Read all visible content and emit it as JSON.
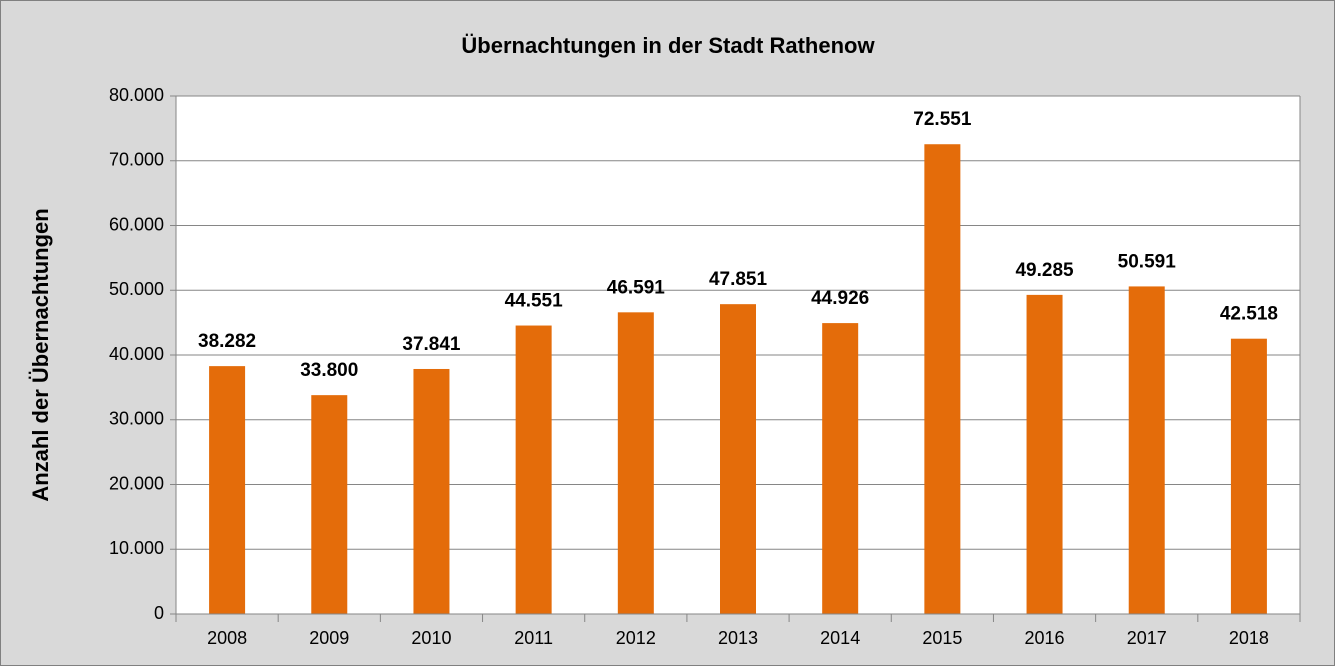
{
  "chart_data": {
    "type": "bar",
    "title": "Übernachtungen in der Stadt Rathenow",
    "y_label": "Anzahl der Übernachtungen",
    "categories": [
      "2008",
      "2009",
      "2010",
      "2011",
      "2012",
      "2013",
      "2014",
      "2015",
      "2016",
      "2017",
      "2018"
    ],
    "values": [
      38282,
      33800,
      37841,
      44551,
      46591,
      47851,
      44926,
      72551,
      49285,
      50591,
      42518
    ],
    "value_labels": [
      "38.282",
      "33.800",
      "37.841",
      "44.551",
      "46.591",
      "47.851",
      "44.926",
      "72.551",
      "49.285",
      "50.591",
      "42.518"
    ],
    "color": "#e46c0a",
    "ylim": [
      0,
      80000
    ],
    "yticks": [
      0,
      {
        "value": 10000,
        "label": "10.000"
      },
      {
        "value": 20000,
        "label": "20.000"
      },
      {
        "value": 30000,
        "label": "30.000"
      },
      {
        "value": 40000,
        "label": "40.000"
      },
      {
        "value": 50000,
        "label": "50.000"
      },
      {
        "value": 60000,
        "label": "60.000"
      },
      {
        "value": 70000,
        "label": "70.000"
      },
      {
        "value": 80000,
        "label": "80.000"
      }
    ],
    "grid": true
  }
}
